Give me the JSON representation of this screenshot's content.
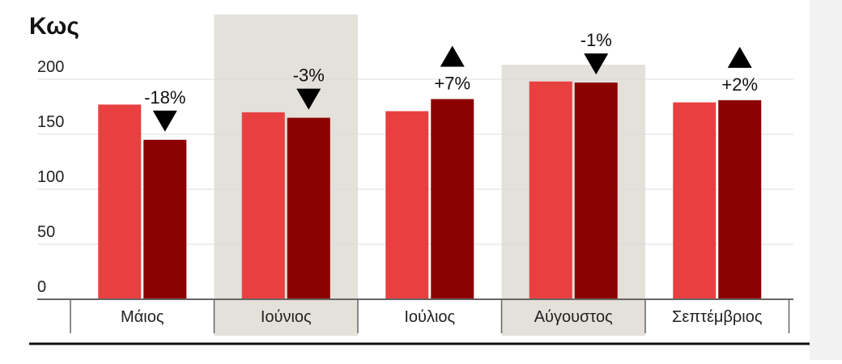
{
  "chart_data": {
    "type": "bar",
    "title": "Κως",
    "categories": [
      "Μάιος",
      "Ιούνιος",
      "Ιούλιος",
      "Αύγουστος",
      "Σεπτέμβριος"
    ],
    "highlighted_categories": [
      "Ιούνιος",
      "Αύγουστος"
    ],
    "series": [
      {
        "values": [
          177,
          170,
          171,
          198,
          179
        ]
      },
      {
        "values": [
          145,
          165,
          182,
          197,
          181
        ]
      }
    ],
    "change_labels": [
      "-18%",
      "-3%",
      "+7%",
      "-1%",
      "+2%"
    ],
    "change_direction": [
      "down",
      "down",
      "up",
      "down",
      "up"
    ],
    "yticks": [
      0,
      50,
      100,
      150,
      200
    ],
    "ylim": [
      0,
      200
    ],
    "grid": true,
    "colors": {
      "series1": "#e84040",
      "series2": "#8b0000",
      "highlight_band": "#e4e0da",
      "grid": "#dddddd",
      "axis": "#666666",
      "text": "#111111"
    }
  }
}
